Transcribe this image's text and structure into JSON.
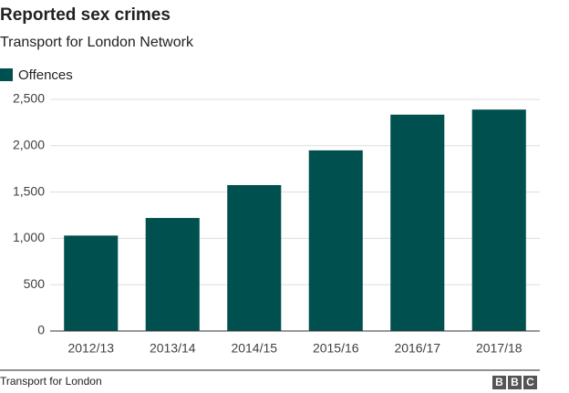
{
  "chart_data": {
    "type": "bar",
    "title": "Reported sex crimes",
    "subtitle": "Transport for London Network",
    "categories": [
      "2012/13",
      "2013/14",
      "2014/15",
      "2015/16",
      "2016/17",
      "2017/18"
    ],
    "series": [
      {
        "name": "Offences",
        "color": "#00504f",
        "values": [
          1030,
          1220,
          1575,
          1950,
          2335,
          2390
        ]
      }
    ],
    "ylim": [
      0,
      2500
    ],
    "yticks": [
      0,
      500,
      {
        "value": 1000,
        "label": "1,000"
      },
      {
        "value": 1500,
        "label": "1,500"
      },
      {
        "value": 2000,
        "label": "2,000"
      },
      {
        "value": 2500,
        "label": "2,500"
      }
    ],
    "grid": true,
    "legend": "top-left",
    "source": "Transport for London",
    "logo": [
      "B",
      "B",
      "C"
    ]
  }
}
